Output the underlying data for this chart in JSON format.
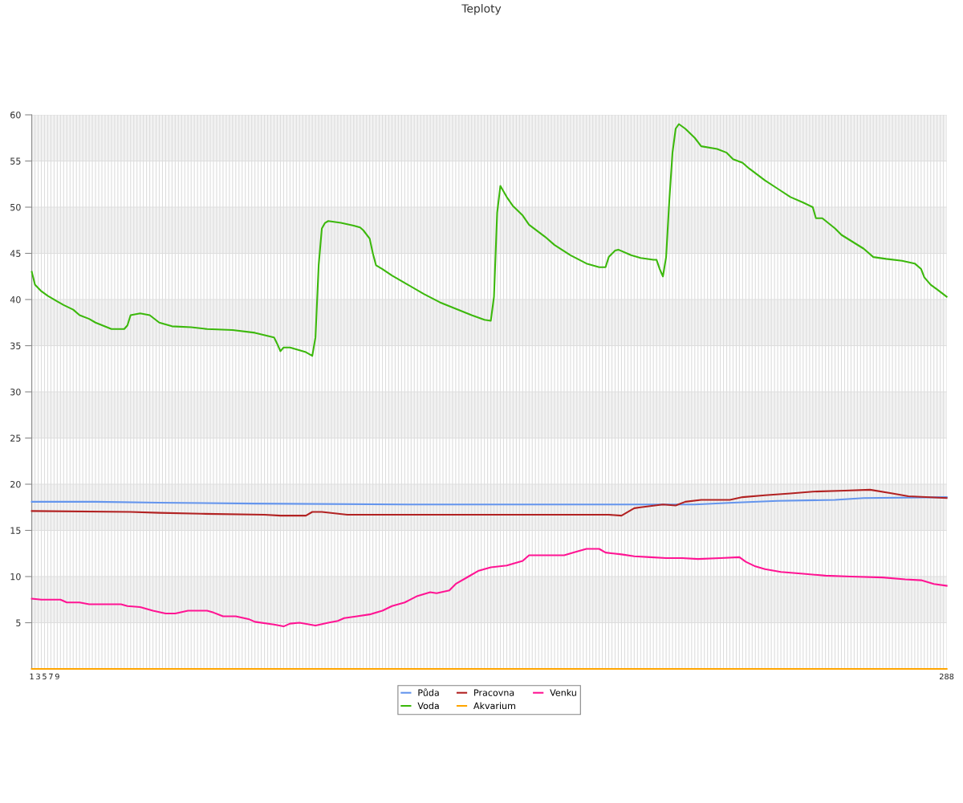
{
  "chart_data": {
    "type": "line",
    "title": "Teploty",
    "xlim": [
      1,
      288
    ],
    "ylim": [
      0,
      60
    ],
    "yticks": [
      5,
      10,
      15,
      20,
      25,
      30,
      35,
      40,
      45,
      50,
      55,
      60
    ],
    "xticks": [
      1,
      {
        "value": 2,
        "label": null
      },
      3,
      {
        "value": 4,
        "label": null
      },
      5,
      {
        "value": 6,
        "label": null
      },
      7,
      {
        "value": 8,
        "label": null
      },
      9,
      {
        "value": 10,
        "label": null
      },
      {
        "value": 11,
        "label": null
      },
      {
        "value": 12,
        "label": null
      },
      {
        "value": 13,
        "label": null
      },
      {
        "value": 14,
        "label": null
      },
      {
        "value": 15,
        "label": null
      },
      {
        "value": 16,
        "label": null
      },
      {
        "value": 17,
        "label": null
      },
      {
        "value": 18,
        "label": null
      },
      {
        "value": 19,
        "label": null
      },
      {
        "value": 20,
        "label": null
      },
      {
        "value": 21,
        "label": null
      },
      {
        "value": 22,
        "label": null
      },
      {
        "value": 23,
        "label": null
      },
      {
        "value": 24,
        "label": null
      },
      {
        "value": 25,
        "label": null
      },
      {
        "value": 26,
        "label": null
      },
      {
        "value": 27,
        "label": null
      },
      {
        "value": 28,
        "label": null
      },
      {
        "value": 29,
        "label": null
      },
      {
        "value": 30,
        "label": null
      },
      {
        "value": 31,
        "label": null
      },
      {
        "value": 32,
        "label": null
      },
      {
        "value": 33,
        "label": null
      },
      {
        "value": 34,
        "label": null
      },
      {
        "value": 35,
        "label": null
      },
      {
        "value": 36,
        "label": null
      },
      {
        "value": 37,
        "label": null
      },
      {
        "value": 38,
        "label": null
      },
      {
        "value": 39,
        "label": null
      },
      {
        "value": 40,
        "label": null
      },
      {
        "value": 41,
        "label": null
      },
      {
        "value": 42,
        "label": null
      },
      {
        "value": 43,
        "label": null
      },
      {
        "value": 44,
        "label": null
      },
      {
        "value": 45,
        "label": null
      },
      {
        "value": 46,
        "label": null
      },
      {
        "value": 47,
        "label": null
      },
      {
        "value": 48,
        "label": null
      },
      {
        "value": 49,
        "label": null
      },
      {
        "value": 50,
        "label": null
      },
      {
        "value": 51,
        "label": null
      },
      {
        "value": 52,
        "label": null
      },
      {
        "value": 53,
        "label": null
      },
      {
        "value": 54,
        "label": null
      },
      {
        "value": 55,
        "label": null
      },
      {
        "value": 56,
        "label": null
      },
      {
        "value": 57,
        "label": null
      },
      {
        "value": 58,
        "label": null
      },
      {
        "value": 59,
        "label": null
      },
      {
        "value": 60,
        "label": null
      },
      {
        "value": 61,
        "label": null
      },
      {
        "value": 62,
        "label": null
      },
      {
        "value": 63,
        "label": null
      },
      {
        "value": 64,
        "label": null
      },
      {
        "value": 65,
        "label": null
      },
      {
        "value": 66,
        "label": null
      },
      {
        "value": 67,
        "label": null
      },
      {
        "value": 68,
        "label": null
      },
      {
        "value": 69,
        "label": null
      },
      {
        "value": 70,
        "label": null
      },
      {
        "value": 71,
        "label": null
      },
      {
        "value": 72,
        "label": null
      },
      {
        "value": 73,
        "label": null
      },
      {
        "value": 74,
        "label": null
      },
      {
        "value": 75,
        "label": null
      },
      {
        "value": 76,
        "label": null
      },
      {
        "value": 77,
        "label": null
      },
      {
        "value": 78,
        "label": null
      },
      {
        "value": 79,
        "label": null
      },
      {
        "value": 80,
        "label": null
      },
      {
        "value": 81,
        "label": null
      },
      {
        "value": 82,
        "label": null
      },
      {
        "value": 83,
        "label": null
      },
      {
        "value": 84,
        "label": null
      },
      {
        "value": 85,
        "label": null
      },
      {
        "value": 86,
        "label": null
      },
      {
        "value": 87,
        "label": null
      },
      {
        "value": 88,
        "label": null
      },
      {
        "value": 89,
        "label": null
      },
      {
        "value": 90,
        "label": null
      },
      {
        "value": 91,
        "label": null
      },
      {
        "value": 92,
        "label": null
      },
      {
        "value": 93,
        "label": null
      },
      {
        "value": 94,
        "label": null
      },
      {
        "value": 95,
        "label": null
      },
      {
        "value": 96,
        "label": null
      },
      {
        "value": 97,
        "label": null
      },
      {
        "value": 98,
        "label": null
      },
      {
        "value": 99,
        "label": null
      },
      {
        "value": 100,
        "label": null
      },
      {
        "value": 101,
        "label": null
      },
      {
        "value": 102,
        "label": null
      },
      {
        "value": 103,
        "label": null
      },
      {
        "value": 104,
        "label": null
      },
      {
        "value": 105,
        "label": null
      },
      {
        "value": 106,
        "label": null
      },
      {
        "value": 107,
        "label": null
      },
      {
        "value": 108,
        "label": null
      },
      {
        "value": 109,
        "label": null
      },
      {
        "value": 110,
        "label": null
      },
      {
        "value": 111,
        "label": null
      },
      {
        "value": 112,
        "label": null
      },
      {
        "value": 113,
        "label": null
      },
      {
        "value": 114,
        "label": null
      },
      {
        "value": 115,
        "label": null
      },
      {
        "value": 116,
        "label": null
      },
      {
        "value": 117,
        "label": null
      },
      {
        "value": 118,
        "label": null
      },
      {
        "value": 119,
        "label": null
      },
      {
        "value": 120,
        "label": null
      },
      {
        "value": 121,
        "label": null
      },
      {
        "value": 122,
        "label": null
      },
      {
        "value": 123,
        "label": null
      },
      {
        "value": 124,
        "label": null
      },
      {
        "value": 125,
        "label": null
      },
      {
        "value": 126,
        "label": null
      },
      {
        "value": 127,
        "label": null
      },
      {
        "value": 128,
        "label": null
      },
      {
        "value": 129,
        "label": null
      },
      {
        "value": 130,
        "label": null
      },
      {
        "value": 131,
        "label": null
      },
      {
        "value": 132,
        "label": null
      },
      {
        "value": 133,
        "label": null
      },
      {
        "value": 134,
        "label": null
      },
      {
        "value": 135,
        "label": null
      },
      {
        "value": 136,
        "label": null
      },
      {
        "value": 137,
        "label": null
      },
      {
        "value": 138,
        "label": null
      },
      {
        "value": 139,
        "label": null
      },
      {
        "value": 140,
        "label": null
      },
      {
        "value": 141,
        "label": null
      },
      {
        "value": 142,
        "label": null
      },
      {
        "value": 143,
        "label": null
      },
      {
        "value": 144,
        "label": null
      },
      {
        "value": 145,
        "label": null
      },
      {
        "value": 146,
        "label": null
      },
      {
        "value": 147,
        "label": null
      },
      {
        "value": 148,
        "label": null
      },
      {
        "value": 149,
        "label": null
      },
      {
        "value": 150,
        "label": null
      },
      {
        "value": 151,
        "label": null
      },
      {
        "value": 152,
        "label": null
      },
      {
        "value": 153,
        "label": null
      },
      {
        "value": 154,
        "label": null
      },
      {
        "value": 155,
        "label": null
      },
      {
        "value": 156,
        "label": null
      },
      {
        "value": 157,
        "label": null
      },
      {
        "value": 158,
        "label": null
      },
      {
        "value": 159,
        "label": null
      },
      {
        "value": 160,
        "label": null
      },
      {
        "value": 161,
        "label": null
      },
      {
        "value": 162,
        "label": null
      },
      {
        "value": 163,
        "label": null
      },
      {
        "value": 164,
        "label": null
      },
      {
        "value": 165,
        "label": null
      },
      {
        "value": 166,
        "label": null
      },
      {
        "value": 167,
        "label": null
      },
      {
        "value": 168,
        "label": null
      },
      {
        "value": 169,
        "label": null
      },
      {
        "value": 170,
        "label": null
      },
      {
        "value": 171,
        "label": null
      },
      {
        "value": 172,
        "label": null
      },
      {
        "value": 173,
        "label": null
      },
      {
        "value": 174,
        "label": null
      },
      {
        "value": 175,
        "label": null
      },
      {
        "value": 176,
        "label": null
      },
      {
        "value": 177,
        "label": null
      },
      {
        "value": 178,
        "label": null
      },
      {
        "value": 179,
        "label": null
      },
      {
        "value": 180,
        "label": null
      },
      {
        "value": 181,
        "label": null
      },
      {
        "value": 182,
        "label": null
      },
      {
        "value": 183,
        "label": null
      },
      {
        "value": 184,
        "label": null
      },
      {
        "value": 185,
        "label": null
      },
      {
        "value": 186,
        "label": null
      },
      {
        "value": 187,
        "label": null
      },
      {
        "value": 188,
        "label": null
      },
      {
        "value": 189,
        "label": null
      },
      {
        "value": 190,
        "label": null
      },
      {
        "value": 191,
        "label": null
      },
      {
        "value": 192,
        "label": null
      },
      {
        "value": 193,
        "label": null
      },
      {
        "value": 194,
        "label": null
      },
      {
        "value": 195,
        "label": null
      },
      {
        "value": 196,
        "label": null
      },
      {
        "value": 197,
        "label": null
      },
      {
        "value": 198,
        "label": null
      },
      {
        "value": 199,
        "label": null
      },
      {
        "value": 200,
        "label": null
      },
      {
        "value": 201,
        "label": null
      },
      {
        "value": 202,
        "label": null
      },
      {
        "value": 203,
        "label": null
      },
      {
        "value": 204,
        "label": null
      },
      {
        "value": 205,
        "label": null
      },
      {
        "value": 206,
        "label": null
      },
      {
        "value": 207,
        "label": null
      },
      {
        "value": 208,
        "label": null
      },
      {
        "value": 209,
        "label": null
      },
      {
        "value": 210,
        "label": null
      },
      {
        "value": 211,
        "label": null
      },
      {
        "value": 212,
        "label": null
      },
      {
        "value": 213,
        "label": null
      },
      {
        "value": 214,
        "label": null
      },
      {
        "value": 215,
        "label": null
      },
      {
        "value": 216,
        "label": null
      },
      {
        "value": 217,
        "label": null
      },
      {
        "value": 218,
        "label": null
      },
      {
        "value": 219,
        "label": null
      },
      {
        "value": 220,
        "label": null
      },
      {
        "value": 221,
        "label": null
      },
      {
        "value": 222,
        "label": null
      },
      {
        "value": 223,
        "label": null
      },
      {
        "value": 224,
        "label": null
      },
      {
        "value": 225,
        "label": null
      },
      {
        "value": 226,
        "label": null
      },
      {
        "value": 227,
        "label": null
      },
      {
        "value": 228,
        "label": null
      },
      {
        "value": 229,
        "label": null
      },
      {
        "value": 230,
        "label": null
      },
      {
        "value": 231,
        "label": null
      },
      {
        "value": 232,
        "label": null
      },
      {
        "value": 233,
        "label": null
      },
      {
        "value": 234,
        "label": null
      },
      {
        "value": 235,
        "label": null
      },
      {
        "value": 236,
        "label": null
      },
      {
        "value": 237,
        "label": null
      },
      {
        "value": 238,
        "label": null
      },
      {
        "value": 239,
        "label": null
      },
      {
        "value": 240,
        "label": null
      },
      {
        "value": 241,
        "label": null
      },
      {
        "value": 242,
        "label": null
      },
      {
        "value": 243,
        "label": null
      },
      {
        "value": 244,
        "label": null
      },
      {
        "value": 245,
        "label": null
      },
      {
        "value": 246,
        "label": null
      },
      {
        "value": 247,
        "label": null
      },
      {
        "value": 248,
        "label": null
      },
      {
        "value": 249,
        "label": null
      },
      {
        "value": 250,
        "label": null
      },
      {
        "value": 251,
        "label": null
      },
      {
        "value": 252,
        "label": null
      },
      {
        "value": 253,
        "label": null
      },
      {
        "value": 254,
        "label": null
      },
      {
        "value": 255,
        "label": null
      },
      {
        "value": 256,
        "label": null
      },
      {
        "value": 257,
        "label": null
      },
      {
        "value": 258,
        "label": null
      },
      {
        "value": 259,
        "label": null
      },
      {
        "value": 260,
        "label": null
      },
      {
        "value": 261,
        "label": null
      },
      {
        "value": 262,
        "label": null
      },
      {
        "value": 263,
        "label": null
      },
      {
        "value": 264,
        "label": null
      },
      {
        "value": 265,
        "label": null
      },
      {
        "value": 266,
        "label": null
      },
      {
        "value": 267,
        "label": null
      },
      {
        "value": 268,
        "label": null
      },
      {
        "value": 269,
        "label": null
      },
      {
        "value": 270,
        "label": null
      },
      {
        "value": 271,
        "label": null
      },
      {
        "value": 272,
        "label": null
      },
      {
        "value": 273,
        "label": null
      },
      {
        "value": 274,
        "label": null
      },
      {
        "value": 275,
        "label": null
      },
      {
        "value": 276,
        "label": null
      },
      {
        "value": 277,
        "label": null
      },
      {
        "value": 278,
        "label": null
      },
      {
        "value": 279,
        "label": null
      },
      {
        "value": 280,
        "label": null
      },
      {
        "value": 281,
        "label": null
      },
      {
        "value": 282,
        "label": null
      },
      {
        "value": 283,
        "label": null
      },
      {
        "value": 284,
        "label": null
      },
      {
        "value": 285,
        "label": null
      },
      {
        "value": 286,
        "label": null
      },
      {
        "value": 287,
        "label": null
      },
      288
    ],
    "grid": true,
    "legend": "bottom",
    "marker": "none",
    "line_style": "solid",
    "bands": [
      {
        "axis": "y",
        "from": 5,
        "to": 10,
        "color": "#f2f2f2"
      },
      {
        "axis": "y",
        "from": 15,
        "to": 20,
        "color": "#f2f2f2"
      },
      {
        "axis": "y",
        "from": 25,
        "to": 30,
        "color": "#f2f2f2"
      },
      {
        "axis": "y",
        "from": 35,
        "to": 40,
        "color": "#f2f2f2"
      },
      {
        "axis": "y",
        "from": 45,
        "to": 50,
        "color": "#f2f2f2"
      },
      {
        "axis": "y",
        "from": 55,
        "to": 60,
        "color": "#f2f2f2"
      }
    ],
    "series": [
      {
        "name": "Půda",
        "color": "#6495ed",
        "x": [
          1,
          21,
          41,
          71,
          119,
          175,
          209,
          221,
          235,
          253,
          262,
          288
        ],
        "values": [
          18.1,
          18.1,
          18.0,
          17.9,
          17.8,
          17.8,
          17.8,
          18.0,
          18.2,
          18.3,
          18.5,
          18.6
        ]
      },
      {
        "name": "Voda",
        "color": "#3cb80c",
        "x": [
          1,
          2,
          4,
          6,
          9,
          11,
          14,
          16,
          19,
          21,
          26,
          30,
          31,
          32,
          35,
          38,
          41,
          45,
          51,
          56,
          64,
          71,
          77,
          78,
          79,
          80,
          82,
          87,
          89,
          90,
          91,
          92,
          93,
          94,
          98,
          102,
          104,
          105,
          107,
          108,
          109,
          111,
          114,
          119,
          124,
          129,
          134,
          139,
          143,
          145,
          146,
          147,
          148,
          150,
          152,
          155,
          157,
          162,
          165,
          170,
          175,
          179,
          181,
          182,
          184,
          185,
          189,
          192,
          196,
          197,
          198,
          199,
          200,
          201,
          202,
          203,
          204,
          206,
          209,
          211,
          216,
          219,
          221,
          224,
          226,
          231,
          235,
          239,
          243,
          246,
          247,
          249,
          253,
          255,
          262,
          265,
          269,
          274,
          278,
          280,
          281,
          283,
          285,
          288
        ],
        "values": [
          43.0,
          41.6,
          40.9,
          40.4,
          39.8,
          39.4,
          38.9,
          38.3,
          37.9,
          37.5,
          36.8,
          36.8,
          37.2,
          38.3,
          38.5,
          38.3,
          37.5,
          37.1,
          37.0,
          36.8,
          36.7,
          36.4,
          35.9,
          35.2,
          34.4,
          34.8,
          34.8,
          34.3,
          33.9,
          35.9,
          43.7,
          47.7,
          48.3,
          48.5,
          48.3,
          48.0,
          47.8,
          47.5,
          46.6,
          45.0,
          43.7,
          43.3,
          42.6,
          41.6,
          40.6,
          39.7,
          39.0,
          38.3,
          37.8,
          37.7,
          40.3,
          49.4,
          52.3,
          51.1,
          50.1,
          49.1,
          48.1,
          46.8,
          45.9,
          44.8,
          43.9,
          43.5,
          43.5,
          44.6,
          45.3,
          45.4,
          44.8,
          44.5,
          44.3,
          44.3,
          43.3,
          42.5,
          44.6,
          50.7,
          55.9,
          58.5,
          59.0,
          58.5,
          57.5,
          56.6,
          56.3,
          55.9,
          55.2,
          54.8,
          54.2,
          52.9,
          52.0,
          51.1,
          50.5,
          50.0,
          48.8,
          48.8,
          47.7,
          47.0,
          45.5,
          44.6,
          44.4,
          44.2,
          43.9,
          43.3,
          42.4,
          41.6,
          41.1,
          40.3
        ]
      },
      {
        "name": "Pracovna",
        "color": "#b22222",
        "x": [
          1,
          32,
          41,
          54,
          74,
          79,
          87,
          89,
          92,
          100,
          182,
          186,
          190,
          192,
          199,
          203,
          206,
          211,
          220,
          224,
          231,
          239,
          246,
          256,
          264,
          271,
          276,
          288
        ],
        "values": [
          17.1,
          17.0,
          16.9,
          16.8,
          16.7,
          16.6,
          16.6,
          17.0,
          17.0,
          16.7,
          16.7,
          16.6,
          17.4,
          17.5,
          17.8,
          17.7,
          18.1,
          18.3,
          18.3,
          18.6,
          18.8,
          19.0,
          19.2,
          19.3,
          19.4,
          19.0,
          18.7,
          18.5
        ]
      },
      {
        "name": "Akvarium",
        "color": "#ffa500",
        "x": [
          1,
          288
        ],
        "values": [
          0,
          0
        ]
      },
      {
        "name": "Venku",
        "color": "#ff1493",
        "x": [
          1,
          4,
          10,
          12,
          16,
          19,
          29,
          31,
          35,
          39,
          43,
          46,
          50,
          56,
          58,
          61,
          65,
          69,
          71,
          77,
          80,
          82,
          85,
          90,
          94,
          97,
          99,
          103,
          107,
          111,
          114,
          118,
          122,
          126,
          128,
          132,
          134,
          138,
          141,
          145,
          150,
          155,
          157,
          161,
          165,
          168,
          171,
          175,
          179,
          181,
          186,
          190,
          195,
          200,
          205,
          210,
          217,
          223,
          225,
          228,
          231,
          236,
          243,
          250,
          258,
          268,
          275,
          280,
          284,
          288
        ],
        "values": [
          7.6,
          7.5,
          7.5,
          7.2,
          7.2,
          7.0,
          7.0,
          6.8,
          6.7,
          6.3,
          6.0,
          6.0,
          6.3,
          6.3,
          6.1,
          5.7,
          5.7,
          5.4,
          5.1,
          4.8,
          4.6,
          4.9,
          5.0,
          4.7,
          5.0,
          5.2,
          5.5,
          5.7,
          5.9,
          6.3,
          6.8,
          7.2,
          7.9,
          8.3,
          8.2,
          8.5,
          9.2,
          10.0,
          10.6,
          11.0,
          11.2,
          11.7,
          12.3,
          12.3,
          12.3,
          12.3,
          12.6,
          13.0,
          13.0,
          12.6,
          12.4,
          12.2,
          12.1,
          12.0,
          12.0,
          11.9,
          12.0,
          12.1,
          11.6,
          11.1,
          10.8,
          10.5,
          10.3,
          10.1,
          10.0,
          9.9,
          9.7,
          9.6,
          9.2,
          9.0
        ]
      }
    ]
  }
}
